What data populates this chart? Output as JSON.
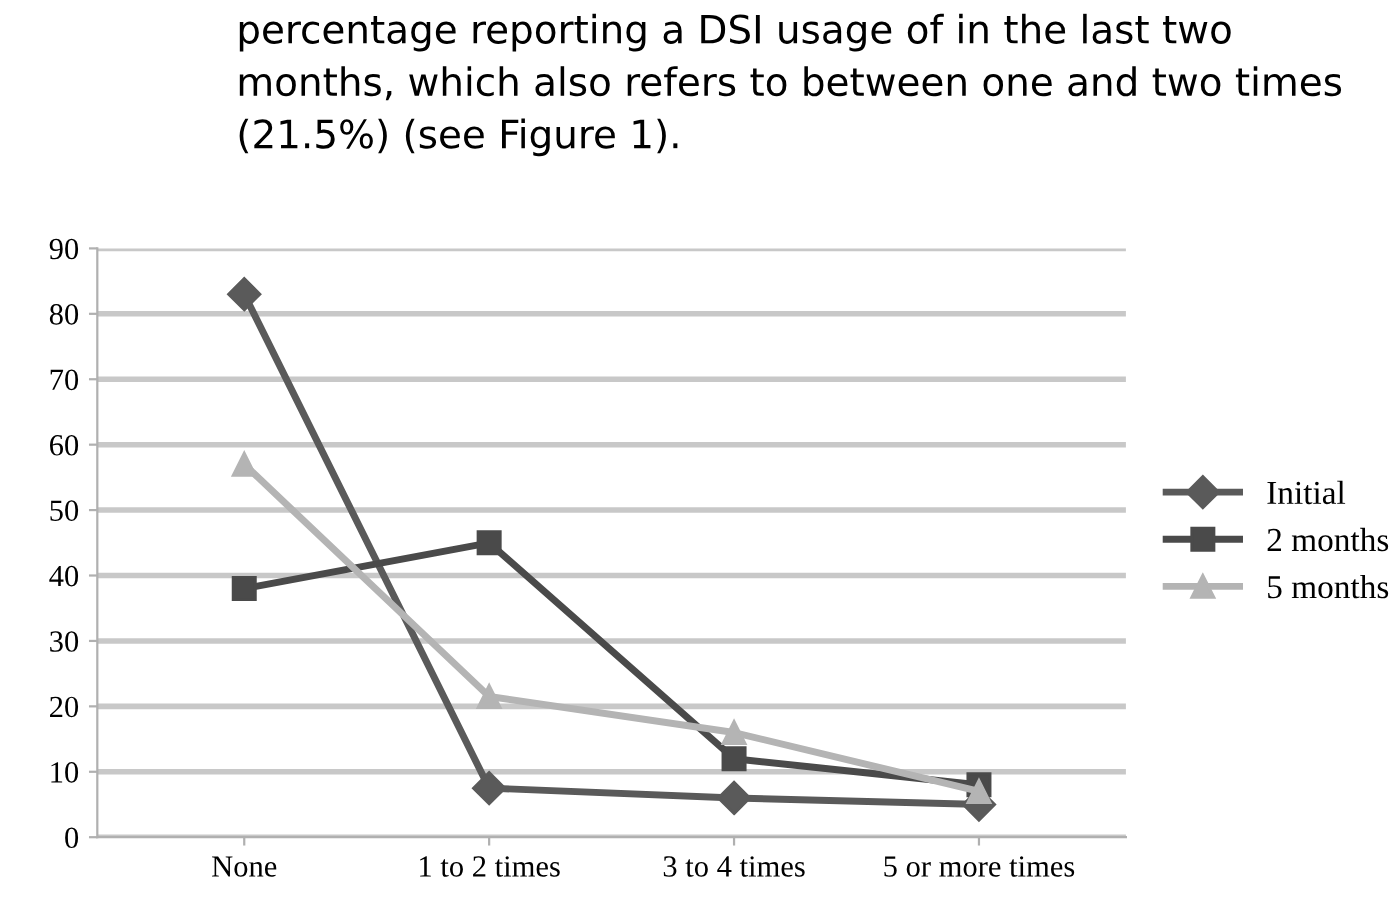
{
  "chart_data": {
    "type": "line",
    "annotations": [
      "percentage reporting a DSI usage of in the last two months, which also refers to between one and two times (21.5%) (see Figure 1)."
    ],
    "categories": [
      "None",
      "1 to 2 times",
      "3 to 4 times",
      "5 or more times"
    ],
    "series": [
      {
        "name": "Initial",
        "color": "#5a5a5a",
        "marker": "diamond",
        "values": [
          83,
          7.5,
          6,
          5
        ]
      },
      {
        "name": "2 months",
        "color": "#4a4a4a",
        "marker": "square",
        "values": [
          38,
          45,
          12,
          8
        ]
      },
      {
        "name": "5 months",
        "color": "#b4b4b4",
        "marker": "triangle",
        "values": [
          57,
          21.5,
          16,
          7
        ]
      }
    ],
    "ylim": [
      0,
      90
    ],
    "yticks": [
      0,
      10,
      20,
      30,
      40,
      50,
      60,
      70,
      80,
      90
    ],
    "grid": "y",
    "legend": "right"
  }
}
